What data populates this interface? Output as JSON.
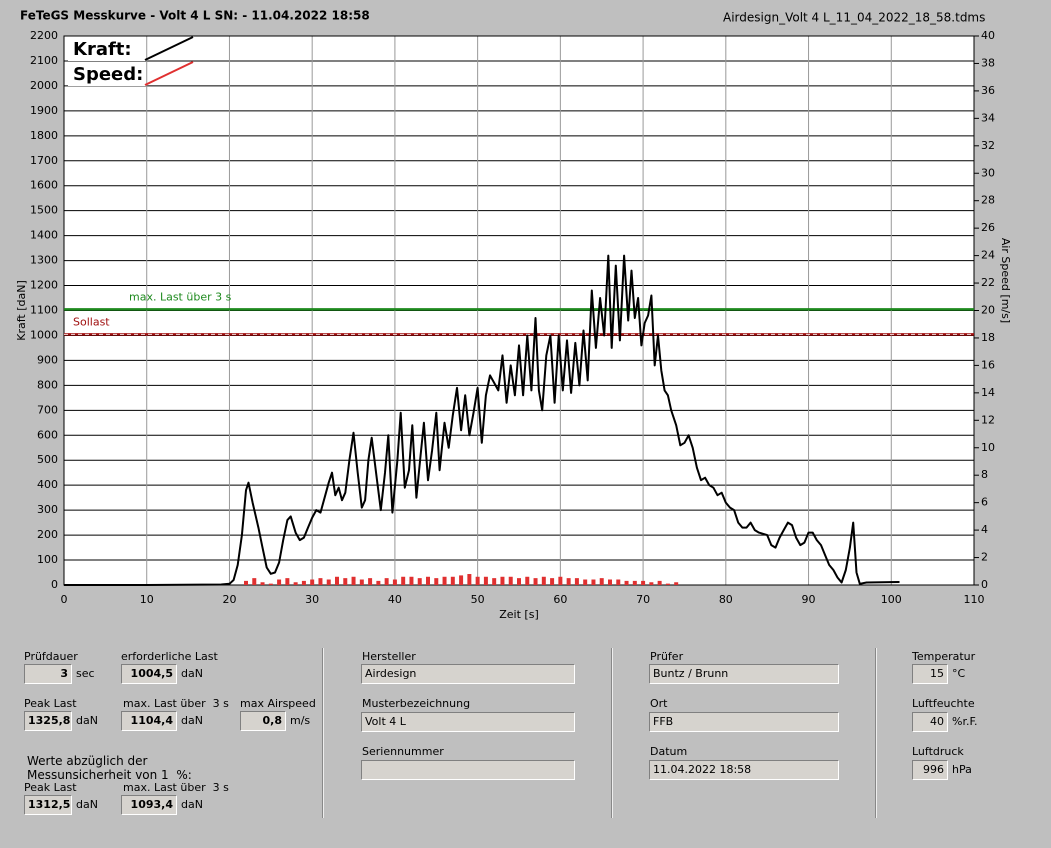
{
  "header": {
    "title": "FeTeGS Messkurve - Volt 4 L  SN:  - 11.04.2022 18:58",
    "file": "Airdesign_Volt 4 L_11_04_2022_18_58.tdms"
  },
  "chart_data": {
    "type": "line",
    "xlabel": "Zeit [s]",
    "ylabel": "Kraft [daN]",
    "y2label": "Air Speed [m/s]",
    "xlim": [
      0,
      110
    ],
    "xticks": [
      0,
      10,
      20,
      30,
      40,
      50,
      60,
      70,
      80,
      90,
      100,
      110
    ],
    "ylim": [
      0,
      2200
    ],
    "yticks": [
      0,
      100,
      200,
      300,
      400,
      500,
      600,
      700,
      800,
      900,
      1000,
      1100,
      1200,
      1300,
      1400,
      1500,
      1600,
      1700,
      1800,
      1900,
      2000,
      2100,
      2200
    ],
    "y2lim": [
      0,
      40
    ],
    "y2ticks": [
      0,
      2,
      4,
      6,
      8,
      10,
      12,
      14,
      16,
      18,
      20,
      22,
      24,
      26,
      28,
      30,
      32,
      34,
      36,
      38,
      40
    ],
    "grid": true,
    "series": [
      {
        "name": "Kraft:",
        "color": "#000000",
        "x": [
          0,
          10,
          19,
          20,
          20.5,
          21,
          21.5,
          22,
          22.3,
          22.8,
          23.5,
          24,
          24.5,
          25,
          25.5,
          26,
          26.5,
          27,
          27.4,
          28,
          28.5,
          29,
          29.5,
          30,
          30.5,
          31,
          31.5,
          32,
          32.4,
          32.8,
          33.2,
          33.6,
          34,
          34.5,
          35,
          35.5,
          36,
          36.4,
          36.8,
          37.2,
          37.8,
          38.3,
          38.8,
          39.2,
          39.7,
          40.3,
          40.7,
          41.2,
          41.7,
          42.1,
          42.6,
          43.1,
          43.5,
          44,
          44.5,
          45,
          45.4,
          46,
          46.5,
          47,
          47.5,
          48,
          48.5,
          49,
          49.5,
          50,
          50.5,
          51,
          51.5,
          52,
          52.5,
          53,
          53.5,
          54,
          54.5,
          55,
          55.5,
          56,
          56.5,
          57,
          57.4,
          57.8,
          58.3,
          58.8,
          59.3,
          59.8,
          60.3,
          60.8,
          61.3,
          61.8,
          62.3,
          62.8,
          63.3,
          63.8,
          64.3,
          64.8,
          65.3,
          65.8,
          66.2,
          66.7,
          67.2,
          67.7,
          68.2,
          68.6,
          69,
          69.4,
          69.8,
          70.2,
          70.6,
          71,
          71.4,
          71.8,
          72.2,
          72.6,
          73,
          73.4,
          74,
          74.5,
          75,
          75.5,
          76,
          76.5,
          77,
          77.5,
          78,
          78.5,
          79,
          79.5,
          80,
          80.5,
          81,
          81.5,
          82,
          82.5,
          83,
          83.5,
          84,
          85,
          85.5,
          86,
          86.5,
          87,
          87.5,
          88,
          88.5,
          89,
          89.5,
          90,
          90.5,
          91,
          91.5,
          92,
          92.5,
          93,
          93.5,
          94,
          94.5,
          95,
          95.4,
          95.8,
          96.2,
          97,
          101
        ],
        "values": [
          0,
          0,
          2,
          5,
          20,
          80,
          200,
          380,
          410,
          330,
          230,
          150,
          70,
          45,
          50,
          90,
          180,
          260,
          275,
          210,
          180,
          190,
          230,
          270,
          300,
          290,
          350,
          410,
          450,
          360,
          390,
          340,
          370,
          500,
          610,
          450,
          310,
          340,
          500,
          590,
          430,
          300,
          450,
          600,
          290,
          500,
          690,
          390,
          460,
          640,
          350,
          520,
          650,
          420,
          540,
          690,
          460,
          650,
          550,
          680,
          790,
          620,
          760,
          600,
          690,
          790,
          570,
          760,
          840,
          810,
          780,
          920,
          730,
          880,
          760,
          960,
          760,
          1000,
          780,
          1070,
          780,
          700,
          920,
          1000,
          730,
          1000,
          780,
          980,
          770,
          970,
          800,
          1020,
          820,
          1180,
          950,
          1150,
          1000,
          1320,
          950,
          1280,
          980,
          1320,
          1060,
          1260,
          1070,
          1150,
          960,
          1050,
          1080,
          1160,
          880,
          1000,
          860,
          780,
          760,
          700,
          640,
          560,
          570,
          600,
          550,
          470,
          420,
          430,
          400,
          390,
          360,
          370,
          330,
          310,
          300,
          250,
          230,
          230,
          250,
          220,
          210,
          200,
          160,
          150,
          190,
          220,
          250,
          240,
          190,
          160,
          170,
          210,
          210,
          180,
          160,
          120,
          80,
          60,
          30,
          10,
          60,
          150,
          250,
          50,
          5,
          10,
          12
        ]
      },
      {
        "name": "Speed:",
        "color": "#e03030",
        "axis": "y2",
        "x": [
          22,
          23,
          24,
          25,
          26,
          27,
          28,
          29,
          30,
          31,
          32,
          33,
          34,
          35,
          36,
          37,
          38,
          39,
          40,
          41,
          42,
          43,
          44,
          45,
          46,
          47,
          48,
          49,
          50,
          51,
          52,
          53,
          54,
          55,
          56,
          57,
          58,
          59,
          60,
          61,
          62,
          63,
          64,
          65,
          66,
          67,
          68,
          69,
          70,
          71,
          72,
          73,
          74
        ],
        "values": [
          0.3,
          0.5,
          0.2,
          0.1,
          0.4,
          0.5,
          0.2,
          0.3,
          0.4,
          0.5,
          0.4,
          0.6,
          0.5,
          0.6,
          0.4,
          0.5,
          0.3,
          0.5,
          0.4,
          0.6,
          0.6,
          0.5,
          0.6,
          0.5,
          0.6,
          0.6,
          0.7,
          0.8,
          0.6,
          0.6,
          0.5,
          0.6,
          0.6,
          0.5,
          0.6,
          0.5,
          0.6,
          0.5,
          0.6,
          0.5,
          0.5,
          0.4,
          0.4,
          0.5,
          0.4,
          0.4,
          0.3,
          0.3,
          0.3,
          0.2,
          0.3,
          0.1,
          0.2
        ]
      }
    ],
    "annotations": [
      {
        "text": "max. Last über  3 s",
        "value": 1104.4,
        "color": "#1e8a1e"
      },
      {
        "text": "Sollast",
        "value": 1004.5,
        "color": "#a01010",
        "dashed": true
      }
    ]
  },
  "panel": {
    "fields": [
      {
        "label": "Prüfdauer",
        "value": "3",
        "unit": "sec"
      },
      {
        "label": "erforderliche Last",
        "value": "1004,5",
        "unit": "daN"
      },
      {
        "label": "Peak Last",
        "value": "1325,8",
        "unit": "daN"
      },
      {
        "label": "max. Last über  3 s",
        "value": "1104,4",
        "unit": "daN"
      },
      {
        "label": "max Airspeed",
        "value": "0,8",
        "unit": "m/s"
      },
      {
        "label": "Peak Last",
        "value": "1312,5",
        "unit": "daN"
      },
      {
        "label": "max. Last über  3 s",
        "value": "1093,4",
        "unit": "daN"
      },
      {
        "label": "Hersteller",
        "value": "Airdesign"
      },
      {
        "label": "Musterbezeichnung",
        "value": "Volt 4 L"
      },
      {
        "label": "Seriennummer"
      },
      {
        "label": "Prüfer",
        "value": "Buntz / Brunn"
      },
      {
        "label": "Ort",
        "value": "FFB"
      },
      {
        "label": "Datum",
        "value": "11.04.2022 18:58"
      },
      {
        "label": "Temperatur",
        "value": "15",
        "unit": "°C"
      },
      {
        "label": "Luftfeuchte",
        "value": "40",
        "unit": "%r.F."
      },
      {
        "label": "Luftdruck",
        "value": "996",
        "unit": "hPa"
      }
    ],
    "note": [
      "Werte abzüglich der",
      "Messunsicherheit von 1  %:"
    ]
  }
}
